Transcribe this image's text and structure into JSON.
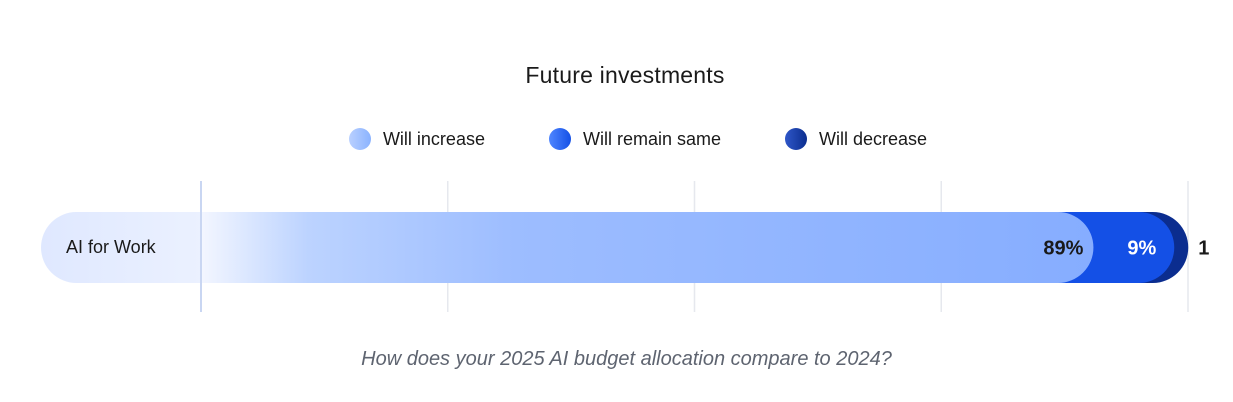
{
  "chart_data": {
    "type": "bar",
    "orientation": "horizontal",
    "stacked": true,
    "title": "Future investments",
    "categories": [
      "AI for Work"
    ],
    "series": [
      {
        "name": "Will increase",
        "values": [
          89
        ],
        "label": "89%",
        "color": "#8bb3ff"
      },
      {
        "name": "Will remain same",
        "values": [
          9
        ],
        "label": "9%",
        "color": "#1450e6"
      },
      {
        "name": "Will decrease",
        "values": [
          1
        ],
        "label": "1",
        "color": "#0b2d8f"
      }
    ],
    "xlim": [
      0,
      100
    ],
    "grid": true,
    "legend_position": "top-center",
    "caption": "How does your 2025 AI budget allocation compare to 2024?"
  },
  "colors": {
    "increase_light": "#eef3ff",
    "increase": "#8bb3ff",
    "remain": "#1450e6",
    "decrease": "#0b2d8f",
    "gridline": "#e6e8ee",
    "axisline": "#c9d6f2",
    "category_pill": "#dfe9ff"
  }
}
